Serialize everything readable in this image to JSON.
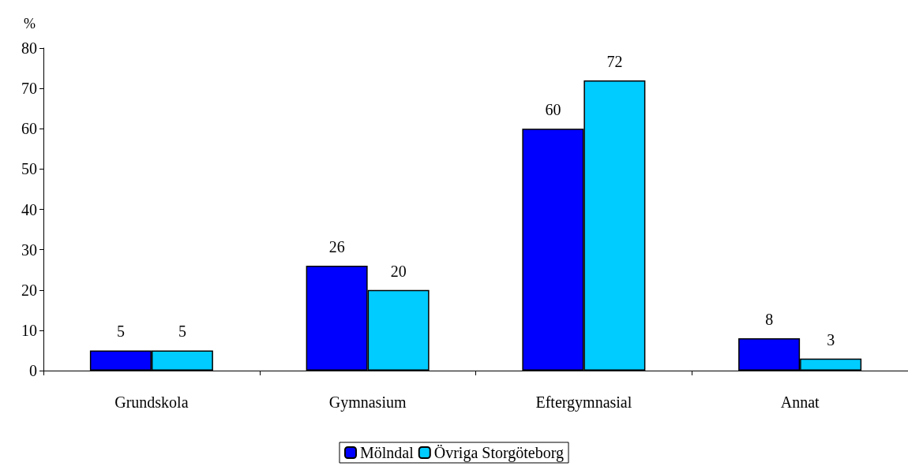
{
  "chart_data": {
    "type": "bar",
    "ylabel": "%",
    "categories": [
      "Grundskola",
      "Gymnasium",
      "Eftergymnasial",
      "Annat"
    ],
    "series": [
      {
        "name": "Mölndal",
        "color": "#0000ff",
        "values": [
          5,
          26,
          60,
          8
        ]
      },
      {
        "name": "Övriga Storgöteborg",
        "color": "#00ccff",
        "values": [
          5,
          20,
          72,
          3
        ]
      }
    ],
    "ylim": [
      0,
      80
    ],
    "yticks": [
      0,
      10,
      20,
      30,
      40,
      50,
      60,
      70,
      80
    ],
    "grid": false,
    "legend": "bottom",
    "data_labels": true
  }
}
